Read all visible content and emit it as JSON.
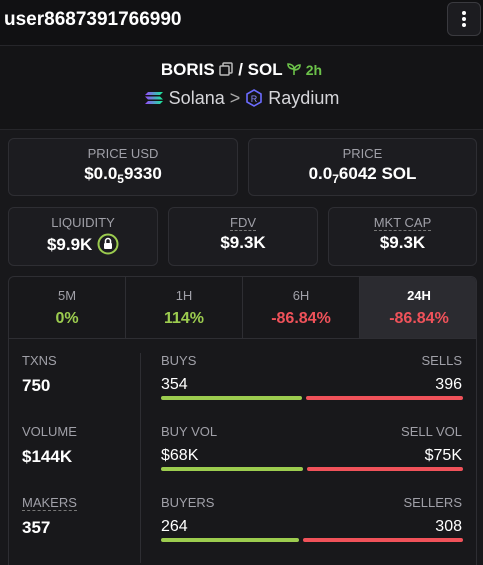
{
  "header": {
    "username": "user8687391766990"
  },
  "pair": {
    "base": "BORIS",
    "separator": "/",
    "quote": "SOL",
    "age": "2h",
    "chain": "Solana",
    "dex": "Raydium"
  },
  "prices": [
    {
      "label": "PRICE USD",
      "prefix": "$0.0",
      "zeros": "5",
      "digits": "9330"
    },
    {
      "label": "PRICE",
      "prefix": "0.0",
      "zeros": "7",
      "digits": "6042 SOL"
    }
  ],
  "stats": [
    {
      "label": "LIQUIDITY",
      "value": "$9.9K"
    },
    {
      "label": "FDV",
      "value": "$9.3K"
    },
    {
      "label": "MKT CAP",
      "value": "$9.3K"
    }
  ],
  "timeframes": [
    {
      "label": "5M",
      "change": "0%"
    },
    {
      "label": "1H",
      "change": "114%"
    },
    {
      "label": "6H",
      "change": "-86.84%"
    },
    {
      "label": "24H",
      "change": "-86.84%"
    }
  ],
  "metrics": [
    {
      "label": "TXNS",
      "value": "750",
      "left_label": "BUYS",
      "left_value": "354",
      "right_label": "SELLS",
      "right_value": "396"
    },
    {
      "label": "VOLUME",
      "value": "$144K",
      "left_label": "BUY VOL",
      "left_value": "$68K",
      "right_label": "SELL VOL",
      "right_value": "$75K"
    },
    {
      "label": "MAKERS",
      "value": "357",
      "left_label": "BUYERS",
      "left_value": "264",
      "right_label": "SELLERS",
      "right_value": "308"
    }
  ]
}
